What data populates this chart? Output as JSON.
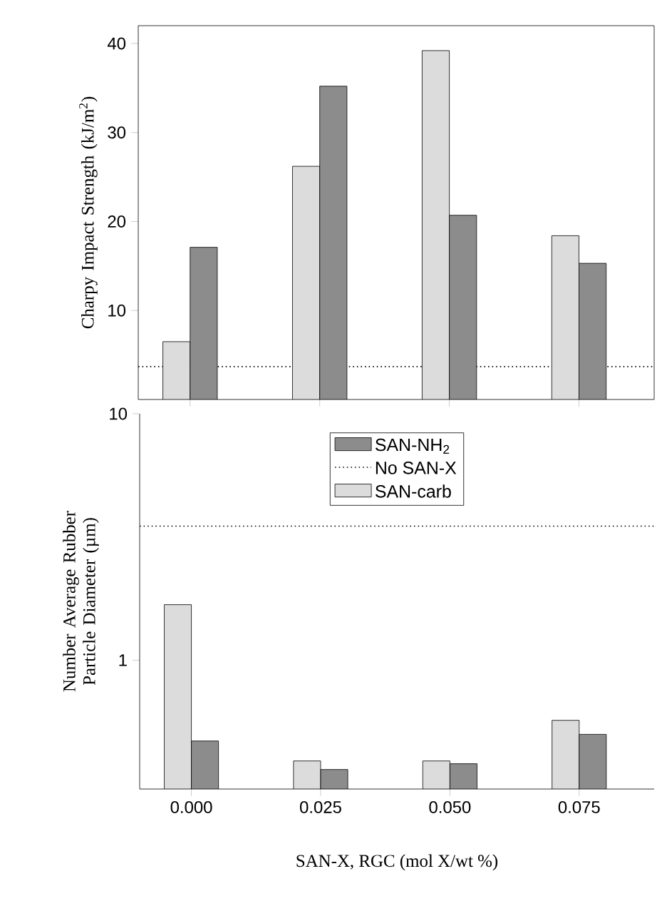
{
  "chart_data": [
    {
      "type": "bar",
      "ylabel": "Charpy Impact Strength (kJ/m$^{2}$)",
      "categories": [
        "0.000",
        "0.025",
        "0.050",
        "0.075"
      ],
      "ylim": [
        0,
        42
      ],
      "yticks": [
        10,
        20,
        30,
        40
      ],
      "tick_labels": "y",
      "series": [
        {
          "color": "#dcdcdc",
          "values": [
            6.5,
            26.2,
            39.2,
            18.4
          ]
        },
        {
          "color": "#8c8c8c",
          "values": [
            17.1,
            35.2,
            20.7,
            15.3
          ]
        }
      ],
      "ref_lines": [
        {
          "axis": "y",
          "value": 3.7,
          "color": "#000000",
          "line_style": "dotted"
        }
      ]
    },
    {
      "type": "bar",
      "ylabel": "Number Average Rubber Particle Diameter (µm)",
      "xlabel": "SAN-X, RGC (mol X/wt %)",
      "categories": [
        "0.000",
        "0.025",
        "0.050",
        "0.075"
      ],
      "ylim": [
        0.3,
        10
      ],
      "yticks": [
        1,
        10
      ],
      "log": true,
      "legend": "top",
      "series": [
        {
          "name": "SAN-carb",
          "color": "#dcdcdc",
          "values": [
            1.68,
            0.39,
            0.39,
            0.57
          ]
        },
        {
          "name": "SAN-NH$_{2}$",
          "color": "#8c8c8c",
          "values": [
            0.47,
            0.36,
            0.38,
            0.5
          ]
        }
      ],
      "ref_lines": [
        {
          "axis": "y",
          "value": 3.5,
          "label": "No SAN-X",
          "color": "#000000",
          "line_style": "dotted"
        }
      ]
    }
  ]
}
